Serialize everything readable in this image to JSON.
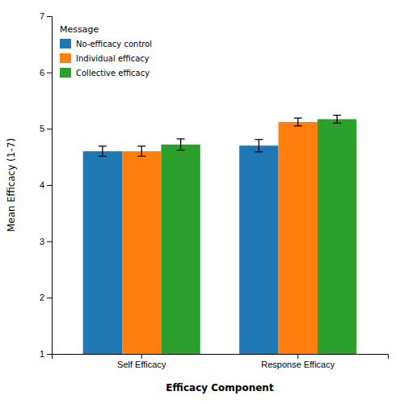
{
  "chart_data": {
    "type": "bar",
    "categories": [
      "Self Efficacy",
      "Response Efficacy"
    ],
    "series": [
      {
        "name": "No-efficacy control",
        "values": [
          4.6,
          4.7
        ],
        "errors": [
          0.09,
          0.11
        ]
      },
      {
        "name": "Individual efficacy",
        "values": [
          4.6,
          5.12
        ],
        "errors": [
          0.09,
          0.07
        ]
      },
      {
        "name": "Collective efficacy",
        "values": [
          4.72,
          5.17
        ],
        "errors": [
          0.1,
          0.07
        ]
      }
    ],
    "xlabel": "Efficacy Component",
    "ylabel": "Mean Efficacy (1-7)",
    "legend_title": "Message",
    "legend": "upper left",
    "ylim": [
      1,
      7
    ],
    "yticks": [
      1,
      2,
      3,
      4,
      5,
      6,
      7
    ],
    "grid": false
  }
}
